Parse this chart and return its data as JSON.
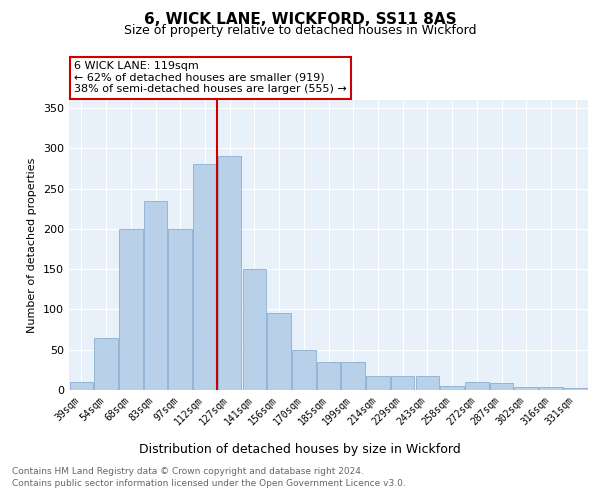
{
  "title": "6, WICK LANE, WICKFORD, SS11 8AS",
  "subtitle": "Size of property relative to detached houses in Wickford",
  "xlabel": "Distribution of detached houses by size in Wickford",
  "ylabel": "Number of detached properties",
  "categories": [
    "39sqm",
    "54sqm",
    "68sqm",
    "83sqm",
    "97sqm",
    "112sqm",
    "127sqm",
    "141sqm",
    "156sqm",
    "170sqm",
    "185sqm",
    "199sqm",
    "214sqm",
    "229sqm",
    "243sqm",
    "258sqm",
    "272sqm",
    "287sqm",
    "302sqm",
    "316sqm",
    "331sqm"
  ],
  "values": [
    10,
    65,
    200,
    235,
    200,
    280,
    290,
    150,
    95,
    50,
    35,
    35,
    17,
    18,
    18,
    5,
    10,
    9,
    4,
    4,
    3
  ],
  "bar_color": "#b8d0e8",
  "bar_edge_color": "#8ab0d0",
  "vline_color": "#cc0000",
  "vline_x_index": 6,
  "annotation_text": "6 WICK LANE: 119sqm\n← 62% of detached houses are smaller (919)\n38% of semi-detached houses are larger (555) →",
  "annotation_box_edge_color": "#cc0000",
  "ylim": [
    0,
    360
  ],
  "yticks": [
    0,
    50,
    100,
    150,
    200,
    250,
    300,
    350
  ],
  "background_color": "#e8f0fa",
  "grid_color": "#ffffff",
  "footer_line1": "Contains HM Land Registry data © Crown copyright and database right 2024.",
  "footer_line2": "Contains public sector information licensed under the Open Government Licence v3.0."
}
